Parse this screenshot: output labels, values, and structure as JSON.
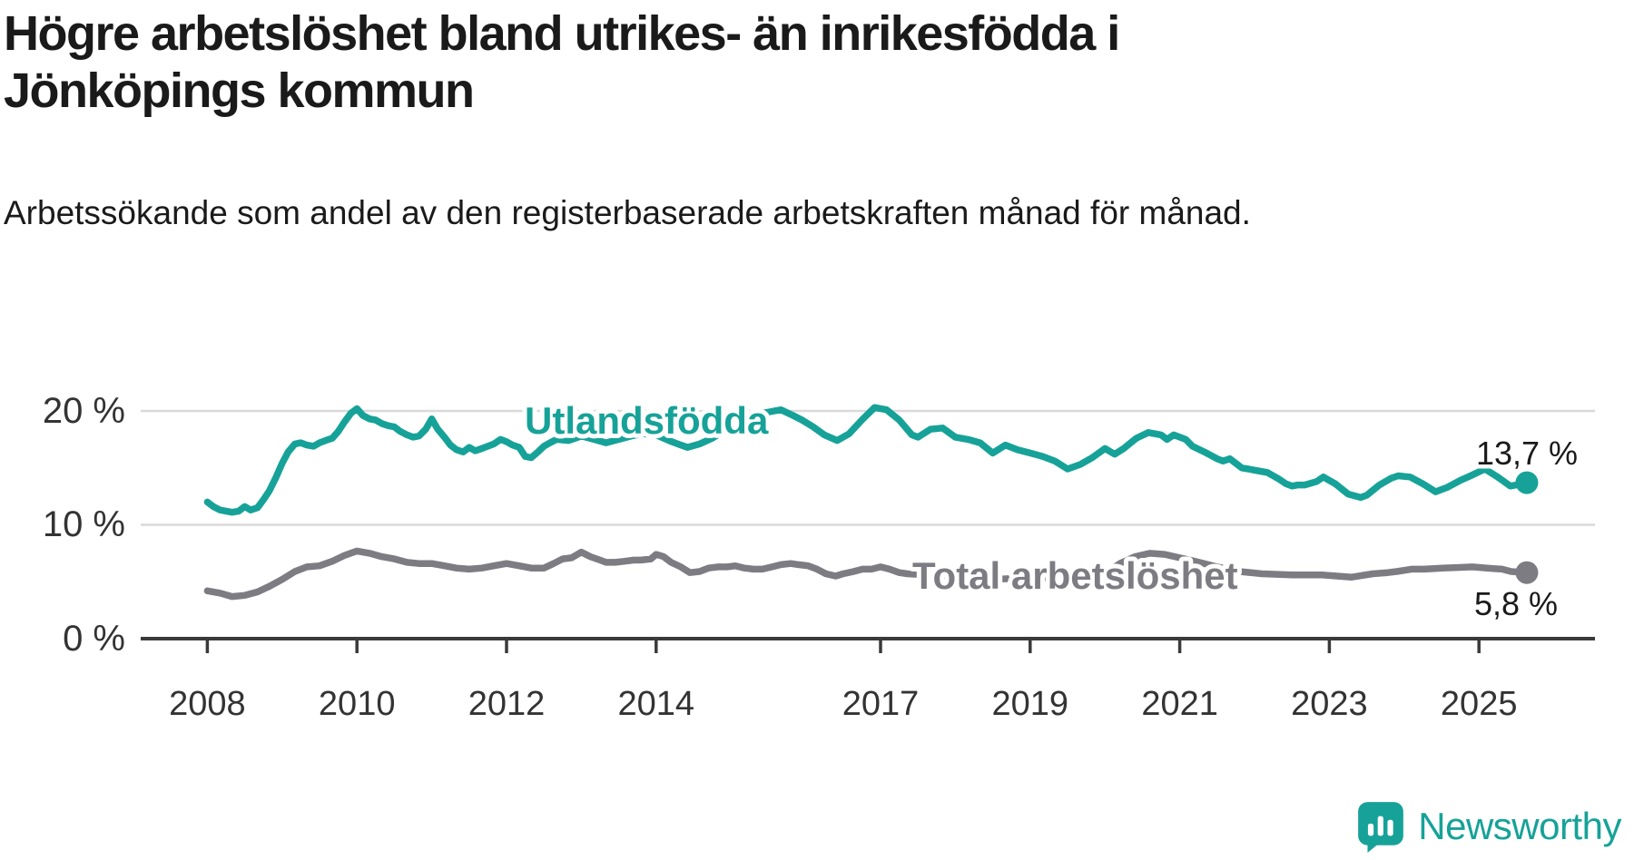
{
  "header": {
    "title": "Högre arbetslöshet bland utrikes- än inrikesfödda i Jönköpings kommun",
    "subtitle": "Arbetssökande som andel av den registerbaserade arbetskraften månad för månad."
  },
  "colors": {
    "foreign_born_line": "#16a298",
    "total_line": "#7c7c82",
    "gridline": "#d9d9d9",
    "axis": "#3a3a3a",
    "label_text": "#1a1a1a",
    "tick_text": "#333333",
    "brand_teal": "#16a298"
  },
  "footer": {
    "brand": "Newsworthy",
    "logo_icon": "newsworthy-speech-bubble-bar-chart-icon"
  },
  "chart_data": {
    "type": "line",
    "title": "Högre arbetslöshet bland utrikes- än inrikesfödda i Jönköpings kommun",
    "subtitle": "Arbetssökande som andel av den registerbaserade arbetskraften månad för månad.",
    "grid": "horizontal-only",
    "legend_position": "inline-labels-on-lines",
    "x_axis": {
      "range": [
        2008.0,
        2025.8
      ],
      "tick_years": [
        2008,
        2010,
        2012,
        2014,
        2017,
        2019,
        2021,
        2023,
        2025
      ],
      "tick_labels": [
        "2008",
        "2010",
        "2012",
        "2014",
        "2017",
        "2019",
        "2021",
        "2023",
        "2025"
      ]
    },
    "y_axis": {
      "unit": "%",
      "range": [
        0,
        22
      ],
      "tick_values": [
        0,
        10,
        20
      ],
      "tick_labels": [
        "0 %",
        "10 %",
        "20 %"
      ]
    },
    "series": [
      {
        "name": "Utlandsfödda",
        "color": "#16a298",
        "end_value": 13.7,
        "end_label": "13,7 %",
        "points": [
          [
            2008.0,
            12.0
          ],
          [
            2008.08,
            11.6
          ],
          [
            2008.17,
            11.3
          ],
          [
            2008.25,
            11.2
          ],
          [
            2008.33,
            11.1
          ],
          [
            2008.42,
            11.2
          ],
          [
            2008.5,
            11.6
          ],
          [
            2008.58,
            11.3
          ],
          [
            2008.67,
            11.5
          ],
          [
            2008.75,
            12.2
          ],
          [
            2008.83,
            13.0
          ],
          [
            2008.92,
            14.2
          ],
          [
            2009.0,
            15.4
          ],
          [
            2009.08,
            16.4
          ],
          [
            2009.17,
            17.1
          ],
          [
            2009.25,
            17.2
          ],
          [
            2009.33,
            17.0
          ],
          [
            2009.42,
            16.9
          ],
          [
            2009.5,
            17.2
          ],
          [
            2009.58,
            17.4
          ],
          [
            2009.67,
            17.6
          ],
          [
            2009.75,
            18.2
          ],
          [
            2009.83,
            19.0
          ],
          [
            2009.92,
            19.8
          ],
          [
            2010.0,
            20.2
          ],
          [
            2010.08,
            19.6
          ],
          [
            2010.17,
            19.3
          ],
          [
            2010.25,
            19.2
          ],
          [
            2010.33,
            18.9
          ],
          [
            2010.42,
            18.7
          ],
          [
            2010.5,
            18.6
          ],
          [
            2010.58,
            18.2
          ],
          [
            2010.67,
            17.9
          ],
          [
            2010.75,
            17.7
          ],
          [
            2010.83,
            17.8
          ],
          [
            2010.92,
            18.4
          ],
          [
            2011.0,
            19.3
          ],
          [
            2011.08,
            18.4
          ],
          [
            2011.17,
            17.7
          ],
          [
            2011.25,
            17.0
          ],
          [
            2011.33,
            16.6
          ],
          [
            2011.42,
            16.4
          ],
          [
            2011.5,
            16.8
          ],
          [
            2011.58,
            16.5
          ],
          [
            2011.67,
            16.7
          ],
          [
            2011.75,
            16.9
          ],
          [
            2011.83,
            17.1
          ],
          [
            2011.92,
            17.5
          ],
          [
            2012.0,
            17.3
          ],
          [
            2012.08,
            17.0
          ],
          [
            2012.17,
            16.8
          ],
          [
            2012.25,
            16.0
          ],
          [
            2012.33,
            15.9
          ],
          [
            2012.42,
            16.4
          ],
          [
            2012.5,
            16.9
          ],
          [
            2012.58,
            17.2
          ],
          [
            2012.67,
            17.5
          ],
          [
            2012.83,
            17.4
          ],
          [
            2012.92,
            17.6
          ],
          [
            2013.0,
            17.8
          ],
          [
            2013.17,
            17.5
          ],
          [
            2013.33,
            17.2
          ],
          [
            2013.5,
            17.5
          ],
          [
            2013.67,
            17.8
          ],
          [
            2013.83,
            18.0
          ],
          [
            2014.0,
            17.9
          ],
          [
            2014.17,
            17.4
          ],
          [
            2014.33,
            17.0
          ],
          [
            2014.42,
            16.8
          ],
          [
            2014.58,
            17.1
          ],
          [
            2014.75,
            17.6
          ],
          [
            2014.92,
            18.3
          ],
          [
            2015.08,
            18.9
          ],
          [
            2015.25,
            19.4
          ],
          [
            2015.42,
            19.8
          ],
          [
            2015.58,
            20.0
          ],
          [
            2015.67,
            20.1
          ],
          [
            2015.83,
            19.6
          ],
          [
            2015.95,
            19.2
          ],
          [
            2016.1,
            18.6
          ],
          [
            2016.25,
            17.9
          ],
          [
            2016.42,
            17.4
          ],
          [
            2016.58,
            18.0
          ],
          [
            2016.75,
            19.2
          ],
          [
            2016.92,
            20.3
          ],
          [
            2017.08,
            20.1
          ],
          [
            2017.25,
            19.2
          ],
          [
            2017.42,
            17.9
          ],
          [
            2017.5,
            17.7
          ],
          [
            2017.67,
            18.4
          ],
          [
            2017.83,
            18.5
          ],
          [
            2018.0,
            17.7
          ],
          [
            2018.17,
            17.5
          ],
          [
            2018.33,
            17.2
          ],
          [
            2018.5,
            16.3
          ],
          [
            2018.67,
            17.0
          ],
          [
            2018.83,
            16.6
          ],
          [
            2019.0,
            16.3
          ],
          [
            2019.17,
            16.0
          ],
          [
            2019.33,
            15.6
          ],
          [
            2019.5,
            14.9
          ],
          [
            2019.67,
            15.3
          ],
          [
            2019.83,
            15.9
          ],
          [
            2020.0,
            16.7
          ],
          [
            2020.13,
            16.2
          ],
          [
            2020.25,
            16.7
          ],
          [
            2020.42,
            17.6
          ],
          [
            2020.58,
            18.1
          ],
          [
            2020.75,
            17.9
          ],
          [
            2020.83,
            17.5
          ],
          [
            2020.92,
            17.9
          ],
          [
            2021.08,
            17.5
          ],
          [
            2021.17,
            16.9
          ],
          [
            2021.33,
            16.4
          ],
          [
            2021.5,
            15.8
          ],
          [
            2021.58,
            15.6
          ],
          [
            2021.67,
            15.8
          ],
          [
            2021.75,
            15.4
          ],
          [
            2021.83,
            15.0
          ],
          [
            2021.92,
            14.9
          ],
          [
            2022.0,
            14.8
          ],
          [
            2022.08,
            14.7
          ],
          [
            2022.17,
            14.6
          ],
          [
            2022.25,
            14.3
          ],
          [
            2022.33,
            14.0
          ],
          [
            2022.42,
            13.6
          ],
          [
            2022.5,
            13.4
          ],
          [
            2022.58,
            13.5
          ],
          [
            2022.67,
            13.5
          ],
          [
            2022.83,
            13.8
          ],
          [
            2022.92,
            14.2
          ],
          [
            2023.0,
            13.9
          ],
          [
            2023.08,
            13.6
          ],
          [
            2023.25,
            12.7
          ],
          [
            2023.42,
            12.4
          ],
          [
            2023.5,
            12.6
          ],
          [
            2023.67,
            13.5
          ],
          [
            2023.83,
            14.1
          ],
          [
            2023.92,
            14.3
          ],
          [
            2024.08,
            14.2
          ],
          [
            2024.25,
            13.6
          ],
          [
            2024.42,
            12.9
          ],
          [
            2024.58,
            13.3
          ],
          [
            2024.75,
            13.9
          ],
          [
            2024.92,
            14.4
          ],
          [
            2025.08,
            14.9
          ],
          [
            2025.25,
            14.2
          ],
          [
            2025.42,
            13.4
          ],
          [
            2025.5,
            13.5
          ],
          [
            2025.64,
            13.7
          ]
        ]
      },
      {
        "name": "Total arbetslöshet",
        "color": "#7c7c82",
        "end_value": 5.8,
        "end_label": "5,8 %",
        "points": [
          [
            2008.0,
            4.2
          ],
          [
            2008.17,
            4.0
          ],
          [
            2008.33,
            3.7
          ],
          [
            2008.5,
            3.8
          ],
          [
            2008.67,
            4.1
          ],
          [
            2008.83,
            4.6
          ],
          [
            2009.0,
            5.2
          ],
          [
            2009.17,
            5.9
          ],
          [
            2009.33,
            6.3
          ],
          [
            2009.5,
            6.4
          ],
          [
            2009.67,
            6.8
          ],
          [
            2009.83,
            7.3
          ],
          [
            2010.0,
            7.7
          ],
          [
            2010.17,
            7.5
          ],
          [
            2010.33,
            7.2
          ],
          [
            2010.5,
            7.0
          ],
          [
            2010.67,
            6.7
          ],
          [
            2010.83,
            6.6
          ],
          [
            2011.0,
            6.6
          ],
          [
            2011.17,
            6.4
          ],
          [
            2011.33,
            6.2
          ],
          [
            2011.5,
            6.1
          ],
          [
            2011.67,
            6.2
          ],
          [
            2011.83,
            6.4
          ],
          [
            2012.0,
            6.6
          ],
          [
            2012.17,
            6.4
          ],
          [
            2012.33,
            6.2
          ],
          [
            2012.5,
            6.2
          ],
          [
            2012.63,
            6.6
          ],
          [
            2012.75,
            7.0
          ],
          [
            2012.87,
            7.1
          ],
          [
            2013.0,
            7.6
          ],
          [
            2013.12,
            7.2
          ],
          [
            2013.25,
            6.9
          ],
          [
            2013.33,
            6.7
          ],
          [
            2013.45,
            6.7
          ],
          [
            2013.58,
            6.8
          ],
          [
            2013.7,
            6.9
          ],
          [
            2013.8,
            6.9
          ],
          [
            2013.93,
            7.0
          ],
          [
            2014.0,
            7.4
          ],
          [
            2014.1,
            7.2
          ],
          [
            2014.2,
            6.7
          ],
          [
            2014.33,
            6.3
          ],
          [
            2014.45,
            5.8
          ],
          [
            2014.58,
            5.9
          ],
          [
            2014.7,
            6.2
          ],
          [
            2014.83,
            6.3
          ],
          [
            2014.95,
            6.3
          ],
          [
            2015.06,
            6.4
          ],
          [
            2015.18,
            6.2
          ],
          [
            2015.3,
            6.1
          ],
          [
            2015.42,
            6.1
          ],
          [
            2015.55,
            6.3
          ],
          [
            2015.67,
            6.5
          ],
          [
            2015.8,
            6.6
          ],
          [
            2015.9,
            6.5
          ],
          [
            2016.03,
            6.4
          ],
          [
            2016.15,
            6.1
          ],
          [
            2016.27,
            5.7
          ],
          [
            2016.4,
            5.5
          ],
          [
            2016.5,
            5.7
          ],
          [
            2016.64,
            5.9
          ],
          [
            2016.76,
            6.1
          ],
          [
            2016.88,
            6.1
          ],
          [
            2017.0,
            6.3
          ],
          [
            2017.12,
            6.1
          ],
          [
            2017.25,
            5.8
          ],
          [
            2017.36,
            5.7
          ],
          [
            2017.6,
            5.6
          ],
          [
            2017.9,
            5.5
          ],
          [
            2018.2,
            5.3
          ],
          [
            2018.5,
            5.2
          ],
          [
            2018.8,
            5.3
          ],
          [
            2019.1,
            5.3
          ],
          [
            2019.4,
            5.4
          ],
          [
            2019.7,
            5.5
          ],
          [
            2020.0,
            5.7
          ],
          [
            2020.2,
            6.6
          ],
          [
            2020.4,
            7.2
          ],
          [
            2020.6,
            7.5
          ],
          [
            2020.8,
            7.4
          ],
          [
            2021.0,
            7.1
          ],
          [
            2021.2,
            6.8
          ],
          [
            2021.5,
            6.3
          ],
          [
            2021.8,
            5.9
          ],
          [
            2022.1,
            5.7
          ],
          [
            2022.5,
            5.6
          ],
          [
            2022.9,
            5.6
          ],
          [
            2023.1,
            5.5
          ],
          [
            2023.3,
            5.4
          ],
          [
            2023.58,
            5.7
          ],
          [
            2023.78,
            5.8
          ],
          [
            2023.9,
            5.9
          ],
          [
            2024.1,
            6.1
          ],
          [
            2024.27,
            6.1
          ],
          [
            2024.51,
            6.2
          ],
          [
            2024.71,
            6.25
          ],
          [
            2024.91,
            6.3
          ],
          [
            2025.11,
            6.2
          ],
          [
            2025.31,
            6.1
          ],
          [
            2025.43,
            5.9
          ],
          [
            2025.64,
            5.8
          ]
        ]
      }
    ]
  }
}
